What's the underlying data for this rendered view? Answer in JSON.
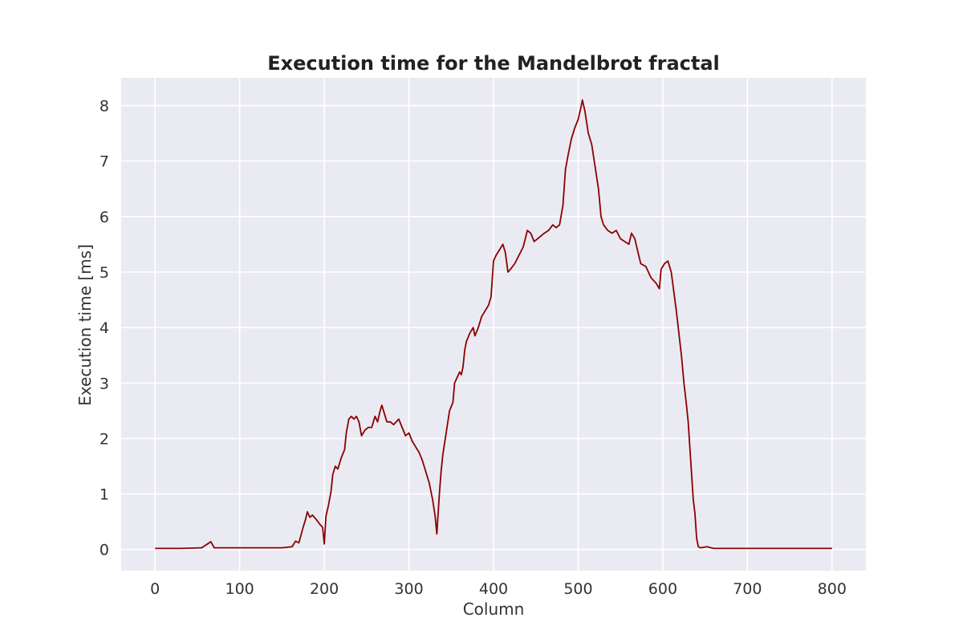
{
  "chart_data": {
    "type": "line",
    "title": "Execution time for the Mandelbrot fractal",
    "xlabel": "Column",
    "ylabel": "Execution time [ms]",
    "xlim": [
      -40,
      840
    ],
    "ylim": [
      -0.38,
      8.5
    ],
    "xticks": [
      0,
      100,
      200,
      300,
      400,
      500,
      600,
      700,
      800
    ],
    "yticks": [
      0,
      1,
      2,
      3,
      4,
      5,
      6,
      7,
      8
    ],
    "grid": true,
    "background": "#eaeaf2",
    "gridColor": "#ffffff",
    "series": [
      {
        "color": "#8b0000",
        "points": [
          [
            0,
            0.02
          ],
          [
            30,
            0.02
          ],
          [
            55,
            0.03
          ],
          [
            62,
            0.1
          ],
          [
            66,
            0.14
          ],
          [
            70,
            0.03
          ],
          [
            100,
            0.03
          ],
          [
            150,
            0.03
          ],
          [
            162,
            0.05
          ],
          [
            166,
            0.15
          ],
          [
            170,
            0.12
          ],
          [
            175,
            0.4
          ],
          [
            178,
            0.55
          ],
          [
            180,
            0.68
          ],
          [
            183,
            0.58
          ],
          [
            186,
            0.62
          ],
          [
            190,
            0.55
          ],
          [
            195,
            0.45
          ],
          [
            198,
            0.4
          ],
          [
            200,
            0.1
          ],
          [
            202,
            0.6
          ],
          [
            205,
            0.8
          ],
          [
            208,
            1.05
          ],
          [
            210,
            1.35
          ],
          [
            213,
            1.5
          ],
          [
            216,
            1.45
          ],
          [
            220,
            1.65
          ],
          [
            224,
            1.8
          ],
          [
            226,
            2.1
          ],
          [
            229,
            2.35
          ],
          [
            232,
            2.4
          ],
          [
            235,
            2.35
          ],
          [
            238,
            2.4
          ],
          [
            241,
            2.3
          ],
          [
            244,
            2.05
          ],
          [
            248,
            2.15
          ],
          [
            252,
            2.2
          ],
          [
            256,
            2.2
          ],
          [
            260,
            2.4
          ],
          [
            263,
            2.3
          ],
          [
            266,
            2.5
          ],
          [
            268,
            2.6
          ],
          [
            270,
            2.5
          ],
          [
            274,
            2.3
          ],
          [
            278,
            2.3
          ],
          [
            282,
            2.25
          ],
          [
            288,
            2.35
          ],
          [
            292,
            2.2
          ],
          [
            296,
            2.05
          ],
          [
            300,
            2.1
          ],
          [
            304,
            1.95
          ],
          [
            308,
            1.85
          ],
          [
            312,
            1.75
          ],
          [
            316,
            1.6
          ],
          [
            320,
            1.4
          ],
          [
            324,
            1.2
          ],
          [
            328,
            0.9
          ],
          [
            331,
            0.6
          ],
          [
            333,
            0.28
          ],
          [
            336,
            1.0
          ],
          [
            338,
            1.4
          ],
          [
            340,
            1.7
          ],
          [
            343,
            2.0
          ],
          [
            345,
            2.2
          ],
          [
            348,
            2.5
          ],
          [
            352,
            2.65
          ],
          [
            354,
            3.0
          ],
          [
            357,
            3.1
          ],
          [
            360,
            3.2
          ],
          [
            362,
            3.15
          ],
          [
            364,
            3.3
          ],
          [
            366,
            3.6
          ],
          [
            368,
            3.75
          ],
          [
            372,
            3.9
          ],
          [
            376,
            4.0
          ],
          [
            378,
            3.85
          ],
          [
            382,
            4.0
          ],
          [
            386,
            4.2
          ],
          [
            390,
            4.3
          ],
          [
            394,
            4.4
          ],
          [
            397,
            4.55
          ],
          [
            400,
            5.2
          ],
          [
            403,
            5.3
          ],
          [
            407,
            5.4
          ],
          [
            411,
            5.5
          ],
          [
            414,
            5.35
          ],
          [
            417,
            5.0
          ],
          [
            420,
            5.05
          ],
          [
            425,
            5.15
          ],
          [
            430,
            5.3
          ],
          [
            435,
            5.45
          ],
          [
            440,
            5.75
          ],
          [
            444,
            5.7
          ],
          [
            448,
            5.55
          ],
          [
            452,
            5.6
          ],
          [
            456,
            5.65
          ],
          [
            460,
            5.7
          ],
          [
            465,
            5.75
          ],
          [
            470,
            5.85
          ],
          [
            474,
            5.8
          ],
          [
            478,
            5.85
          ],
          [
            482,
            6.2
          ],
          [
            485,
            6.85
          ],
          [
            488,
            7.1
          ],
          [
            492,
            7.4
          ],
          [
            496,
            7.6
          ],
          [
            500,
            7.75
          ],
          [
            503,
            7.95
          ],
          [
            505,
            8.1
          ],
          [
            508,
            7.9
          ],
          [
            512,
            7.5
          ],
          [
            516,
            7.3
          ],
          [
            520,
            6.9
          ],
          [
            524,
            6.5
          ],
          [
            527,
            6.0
          ],
          [
            530,
            5.85
          ],
          [
            535,
            5.75
          ],
          [
            540,
            5.7
          ],
          [
            545,
            5.75
          ],
          [
            550,
            5.6
          ],
          [
            555,
            5.55
          ],
          [
            560,
            5.5
          ],
          [
            563,
            5.7
          ],
          [
            567,
            5.6
          ],
          [
            570,
            5.4
          ],
          [
            574,
            5.15
          ],
          [
            580,
            5.1
          ],
          [
            586,
            4.9
          ],
          [
            592,
            4.8
          ],
          [
            596,
            4.7
          ],
          [
            598,
            5.05
          ],
          [
            602,
            5.15
          ],
          [
            606,
            5.2
          ],
          [
            610,
            5.0
          ],
          [
            613,
            4.65
          ],
          [
            616,
            4.3
          ],
          [
            619,
            3.9
          ],
          [
            622,
            3.5
          ],
          [
            625,
            3.0
          ],
          [
            628,
            2.6
          ],
          [
            630,
            2.3
          ],
          [
            633,
            1.6
          ],
          [
            636,
            0.9
          ],
          [
            638,
            0.65
          ],
          [
            640,
            0.2
          ],
          [
            642,
            0.05
          ],
          [
            645,
            0.03
          ],
          [
            652,
            0.05
          ],
          [
            660,
            0.02
          ],
          [
            700,
            0.02
          ],
          [
            800,
            0.02
          ]
        ]
      }
    ]
  }
}
